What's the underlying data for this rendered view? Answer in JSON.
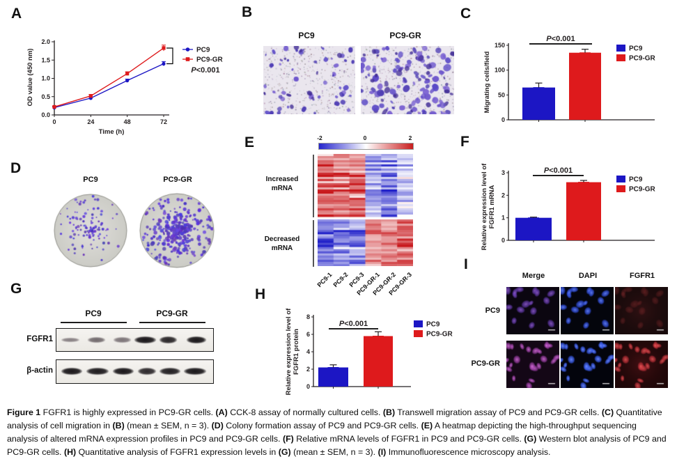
{
  "colors": {
    "pc9_blue": "#1c16c4",
    "pc9gr_red": "#de1a1c",
    "axis": "#231f20",
    "heat_blue": "#2525cc",
    "heat_red": "#c81e1e",
    "stain_purple": "#5a48c6"
  },
  "panels": {
    "A": {
      "label": "A"
    },
    "B": {
      "label": "B",
      "images": [
        {
          "title": "PC9"
        },
        {
          "title": "PC9-GR"
        }
      ]
    },
    "C": {
      "label": "C"
    },
    "D": {
      "label": "D",
      "images": [
        {
          "title": "PC9"
        },
        {
          "title": "PC9-GR"
        }
      ]
    },
    "E": {
      "label": "E",
      "scale_ticks": [
        "-2",
        "0",
        "2"
      ],
      "row_blocks": [
        "Increased mRNA",
        "Decreased mRNA"
      ],
      "columns": [
        "PC9-1",
        "PC9-2",
        "PC9-3",
        "PC9-GR-1",
        "PC9-GR-2",
        "PC9-GR-3"
      ]
    },
    "F": {
      "label": "F"
    },
    "G": {
      "label": "G",
      "groups": [
        "PC9",
        "PC9-GR"
      ],
      "rows": [
        {
          "label": "FGFR1",
          "band_intensities": [
            0.38,
            0.52,
            0.45,
            1.0,
            0.92,
            1.0
          ]
        },
        {
          "label": "β-actin",
          "band_intensities": [
            1.0,
            0.98,
            1.0,
            0.9,
            0.96,
            1.0
          ]
        }
      ]
    },
    "H": {
      "label": "H"
    },
    "I": {
      "label": "I",
      "columns": [
        "Merge",
        "DAPI",
        "FGFR1"
      ],
      "rows": [
        "PC9",
        "PC9-GR"
      ]
    }
  },
  "chart_data": [
    {
      "panel": "A",
      "type": "line",
      "x": [
        0,
        24,
        48,
        72
      ],
      "xlabel": "Time (h)",
      "ylabel": "OD value (450 nm)",
      "ylim": [
        0,
        2
      ],
      "yticks": [
        "0.0",
        "0.5",
        "1.0",
        "1.5",
        "2.0"
      ],
      "series": [
        {
          "name": "PC9",
          "color": "#1c16c4",
          "marker": "circle",
          "values": [
            0.2,
            0.46,
            0.94,
            1.4
          ],
          "errors": [
            0.02,
            0.03,
            0.04,
            0.06
          ]
        },
        {
          "name": "PC9-GR",
          "color": "#de1a1c",
          "marker": "square",
          "values": [
            0.22,
            0.52,
            1.13,
            1.83
          ],
          "errors": [
            0.02,
            0.04,
            0.05,
            0.08
          ]
        }
      ],
      "annotation": "P<0.001",
      "legend_position": "right",
      "grid": false
    },
    {
      "panel": "C",
      "type": "bar",
      "categories": [
        "PC9",
        "PC9-GR"
      ],
      "values": [
        65,
        135
      ],
      "errors": [
        9,
        7
      ],
      "bar_colors": [
        "#1c16c4",
        "#de1a1c"
      ],
      "ylabel": [
        "Migrating cells/field"
      ],
      "ylim": [
        0,
        150
      ],
      "yticks": [
        0,
        50,
        100,
        150
      ],
      "annotation": "P<0.001",
      "legend": [
        "PC9",
        "PC9-GR"
      ],
      "legend_position": "right"
    },
    {
      "panel": "E",
      "type": "heatmap",
      "columns": [
        "PC9-1",
        "PC9-2",
        "PC9-3",
        "PC9-GR-1",
        "PC9-GR-2",
        "PC9-GR-3"
      ],
      "colorscale": {
        "min": -2,
        "mid": 0,
        "max": 2,
        "low_color": "#2525cc",
        "mid_color": "#ffffff",
        "high_color": "#c81e1e"
      },
      "blocks": [
        {
          "label": "Increased mRNA",
          "rows": 30,
          "column_means": [
            1.25,
            1.15,
            1.2,
            -0.85,
            -1.25,
            -0.45
          ]
        },
        {
          "label": "Decreased mRNA",
          "rows": 22,
          "column_means": [
            -1.25,
            -0.95,
            -1.05,
            0.9,
            1.0,
            1.3
          ]
        }
      ]
    },
    {
      "panel": "F",
      "type": "bar",
      "categories": [
        "PC9",
        "PC9-GR"
      ],
      "values": [
        1.0,
        2.58
      ],
      "errors": [
        0.03,
        0.08
      ],
      "bar_colors": [
        "#1c16c4",
        "#de1a1c"
      ],
      "ylabel": [
        "Relative expression level of",
        "FGFR1 mRNA"
      ],
      "ylim": [
        0,
        3
      ],
      "yticks": [
        0,
        1,
        2,
        3
      ],
      "annotation": "P<0.001",
      "legend": [
        "PC9",
        "PC9-GR"
      ],
      "legend_position": "right"
    },
    {
      "panel": "H",
      "type": "bar",
      "categories": [
        "PC9",
        "PC9-GR"
      ],
      "values": [
        2.2,
        5.8
      ],
      "errors": [
        0.3,
        0.5
      ],
      "bar_colors": [
        "#1c16c4",
        "#de1a1c"
      ],
      "ylabel": [
        "Relative expression level of",
        "FGFR1 protein"
      ],
      "ylim": [
        0,
        8
      ],
      "yticks": [
        0,
        2,
        4,
        6,
        8
      ],
      "annotation": "P<0.001",
      "legend": [
        "PC9",
        "PC9-GR"
      ],
      "legend_position": "right"
    }
  ],
  "caption": {
    "segments": [
      {
        "text": "Figure 1 ",
        "bold": true
      },
      {
        "text": "FGFR1 is highly expressed in PC9-GR cells. ",
        "bold": false
      },
      {
        "text": "(A)",
        "bold": true
      },
      {
        "text": " CCK-8 assay of normally cultured cells. ",
        "bold": false
      },
      {
        "text": "(B)",
        "bold": true
      },
      {
        "text": " Transwell migration assay of PC9 and PC9-GR cells. ",
        "bold": false
      },
      {
        "text": "(C)",
        "bold": true
      },
      {
        "text": " Quantitative analysis of cell migration in ",
        "bold": false
      },
      {
        "text": "(B)",
        "bold": true
      },
      {
        "text": " (mean ± SEM, n = 3). ",
        "bold": false
      },
      {
        "text": "(D)",
        "bold": true
      },
      {
        "text": " Colony formation assay of PC9 and PC9-GR cells. ",
        "bold": false
      },
      {
        "text": "(E)",
        "bold": true
      },
      {
        "text": " A heatmap depicting the high-throughput sequencing analysis of altered mRNA expression profiles in PC9 and PC9-GR cells. ",
        "bold": false
      },
      {
        "text": "(F)",
        "bold": true
      },
      {
        "text": " Relative mRNA levels of FGFR1 in PC9 and PC9-GR cells. ",
        "bold": false
      },
      {
        "text": "(G)",
        "bold": true
      },
      {
        "text": " Western blot analysis of PC9 and PC9-GR cells. ",
        "bold": false
      },
      {
        "text": "(H)",
        "bold": true
      },
      {
        "text": " Quantitative analysis of FGFR1 expression levels in ",
        "bold": false
      },
      {
        "text": "(G)",
        "bold": true
      },
      {
        "text": " (mean ± SEM, n = 3). ",
        "bold": false
      },
      {
        "text": "(I)",
        "bold": true
      },
      {
        "text": " Immunofluorescence microscopy analysis.",
        "bold": false
      }
    ]
  }
}
